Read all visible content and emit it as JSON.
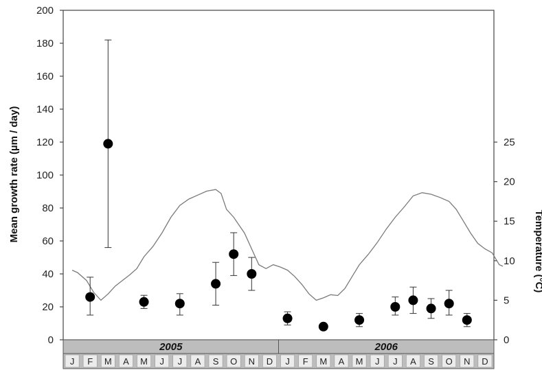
{
  "chart_data": {
    "type": "scatter",
    "ylabel": "Mean growth rate (µm / day)",
    "y2label": "Temperature (°C)",
    "ylim": [
      0,
      200
    ],
    "y2lim": [
      0,
      41.67
    ],
    "yticks": [
      "0",
      "20",
      "40",
      "60",
      "80",
      "100",
      "120",
      "140",
      "160",
      "180",
      "200"
    ],
    "y2ticks": [
      "0",
      "5",
      "10",
      "15",
      "20",
      "25"
    ],
    "years": [
      "2005",
      "2006"
    ],
    "months": [
      "J",
      "F",
      "M",
      "A",
      "M",
      "J",
      "J",
      "A",
      "S",
      "O",
      "N",
      "D",
      "J",
      "F",
      "M",
      "A",
      "M",
      "J",
      "J",
      "A",
      "S",
      "O",
      "N",
      "D"
    ],
    "series": [
      {
        "kind": "growth_rate_mean_with_error",
        "points": [
          {
            "month_index": 1,
            "value": 26,
            "err_low": 15,
            "err_high": 38
          },
          {
            "month_index": 2,
            "value": 119,
            "err_low": 56,
            "err_high": 182
          },
          {
            "month_index": 4,
            "value": 23,
            "err_low": 19,
            "err_high": 27
          },
          {
            "month_index": 6,
            "value": 22,
            "err_low": 15,
            "err_high": 28
          },
          {
            "month_index": 8,
            "value": 34,
            "err_low": 21,
            "err_high": 47
          },
          {
            "month_index": 9,
            "value": 52,
            "err_low": 39,
            "err_high": 65
          },
          {
            "month_index": 10,
            "value": 40,
            "err_low": 30,
            "err_high": 50
          },
          {
            "month_index": 12,
            "value": 13,
            "err_low": 9,
            "err_high": 17
          },
          {
            "month_index": 14,
            "value": 8,
            "err_low": 7,
            "err_high": 9
          },
          {
            "month_index": 16,
            "value": 12,
            "err_low": 8,
            "err_high": 16
          },
          {
            "month_index": 18,
            "value": 20,
            "err_low": 15,
            "err_high": 26
          },
          {
            "month_index": 19,
            "value": 24,
            "err_low": 16,
            "err_high": 32
          },
          {
            "month_index": 20,
            "value": 19,
            "err_low": 13,
            "err_high": 25
          },
          {
            "month_index": 21,
            "value": 22,
            "err_low": 15,
            "err_high": 30
          },
          {
            "month_index": 22,
            "value": 12,
            "err_low": 8,
            "err_high": 16
          }
        ]
      },
      {
        "kind": "temperature_line",
        "month_pos": [
          0.0,
          0.3,
          0.8,
          1.2,
          1.6,
          2.0,
          2.4,
          2.8,
          3.2,
          3.6,
          4.0,
          4.5,
          5.0,
          5.5,
          6.0,
          6.5,
          7.0,
          7.5,
          8.0,
          8.3,
          8.6,
          9.0,
          9.3,
          9.6,
          10.0,
          10.4,
          10.8,
          11.2,
          11.6,
          12.0,
          12.4,
          12.8,
          13.2,
          13.6,
          14.0,
          14.4,
          14.8,
          15.2,
          15.6,
          16.0,
          16.5,
          17.0,
          17.5,
          18.0,
          18.5,
          19.0,
          19.5,
          20.0,
          20.5,
          21.0,
          21.4,
          21.8,
          22.2,
          22.6,
          23.0,
          23.4,
          23.8,
          24.0
        ],
        "temperature_c": [
          8.8,
          8.5,
          7.5,
          6.0,
          5.0,
          5.8,
          6.8,
          7.5,
          8.2,
          9.0,
          10.5,
          11.8,
          13.5,
          15.5,
          17.0,
          17.8,
          18.3,
          18.8,
          19.0,
          18.5,
          16.5,
          15.5,
          14.5,
          13.5,
          11.5,
          9.5,
          9.0,
          9.5,
          9.2,
          8.8,
          8.0,
          7.0,
          5.8,
          5.0,
          5.3,
          5.7,
          5.6,
          6.5,
          8.0,
          9.5,
          10.8,
          12.3,
          14.0,
          15.5,
          16.8,
          18.2,
          18.6,
          18.4,
          18.0,
          17.5,
          16.5,
          15.0,
          13.5,
          12.2,
          11.5,
          11.0,
          9.5,
          9.3
        ]
      }
    ],
    "grid": false,
    "legend": "none"
  }
}
